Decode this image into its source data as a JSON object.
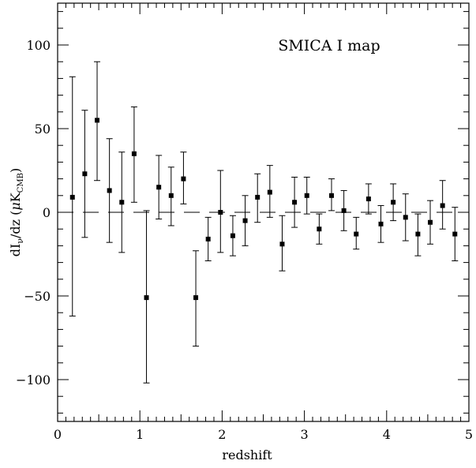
{
  "chart_data": {
    "type": "scatter",
    "annotation": "SMICA I map",
    "xlabel": "redshift",
    "ylabel": {
      "prefix": "dI",
      "nu": "ν",
      "middle": "/dz  (",
      "mu": "μ",
      "k": "K",
      "sub": "CMB",
      "suffix": ")"
    },
    "xlim": [
      0,
      5
    ],
    "ylim": [
      -125,
      125
    ],
    "x_ticks": [
      0,
      1,
      2,
      3,
      4,
      5
    ],
    "y_ticks": [
      -100,
      -50,
      0,
      50,
      100
    ],
    "x_tick_labels": [
      "0",
      "1",
      "2",
      "3",
      "4",
      "5"
    ],
    "y_tick_labels": [
      "−100",
      "−50",
      "0",
      "50",
      "100"
    ],
    "zero_line": {
      "style": "dashed",
      "y": 0
    },
    "marker": "filled-square",
    "points": [
      {
        "x": 0.18,
        "y": 9,
        "lo": -62,
        "hi": 81
      },
      {
        "x": 0.33,
        "y": 23,
        "lo": -15,
        "hi": 61
      },
      {
        "x": 0.48,
        "y": 55,
        "lo": 19,
        "hi": 90
      },
      {
        "x": 0.63,
        "y": 13,
        "lo": -18,
        "hi": 44
      },
      {
        "x": 0.78,
        "y": 6,
        "lo": -24,
        "hi": 36
      },
      {
        "x": 0.93,
        "y": 35,
        "lo": 6,
        "hi": 63
      },
      {
        "x": 1.08,
        "y": -51,
        "lo": -102,
        "hi": 1
      },
      {
        "x": 1.23,
        "y": 15,
        "lo": -4,
        "hi": 34
      },
      {
        "x": 1.38,
        "y": 10,
        "lo": -8,
        "hi": 27
      },
      {
        "x": 1.53,
        "y": 20,
        "lo": 5,
        "hi": 36
      },
      {
        "x": 1.68,
        "y": -51,
        "lo": -80,
        "hi": -23
      },
      {
        "x": 1.83,
        "y": -16,
        "lo": -29,
        "hi": -3
      },
      {
        "x": 1.98,
        "y": 0,
        "lo": -24,
        "hi": 25
      },
      {
        "x": 2.13,
        "y": -14,
        "lo": -26,
        "hi": -2
      },
      {
        "x": 2.28,
        "y": -5,
        "lo": -20,
        "hi": 10
      },
      {
        "x": 2.43,
        "y": 9,
        "lo": -6,
        "hi": 23
      },
      {
        "x": 2.58,
        "y": 12,
        "lo": -3,
        "hi": 28
      },
      {
        "x": 2.73,
        "y": -19,
        "lo": -35,
        "hi": -2
      },
      {
        "x": 2.88,
        "y": 6,
        "lo": -9,
        "hi": 21
      },
      {
        "x": 3.03,
        "y": 10,
        "lo": -1,
        "hi": 21
      },
      {
        "x": 3.18,
        "y": -10,
        "lo": -19,
        "hi": -1
      },
      {
        "x": 3.33,
        "y": 10,
        "lo": 1,
        "hi": 20
      },
      {
        "x": 3.48,
        "y": 1,
        "lo": -11,
        "hi": 13
      },
      {
        "x": 3.63,
        "y": -13,
        "lo": -22,
        "hi": -3
      },
      {
        "x": 3.78,
        "y": 8,
        "lo": -1,
        "hi": 17
      },
      {
        "x": 3.93,
        "y": -7,
        "lo": -18,
        "hi": 4
      },
      {
        "x": 4.08,
        "y": 6,
        "lo": -5,
        "hi": 17
      },
      {
        "x": 4.23,
        "y": -3,
        "lo": -17,
        "hi": 11
      },
      {
        "x": 4.38,
        "y": -13,
        "lo": -26,
        "hi": -1
      },
      {
        "x": 4.53,
        "y": -6,
        "lo": -19,
        "hi": 7
      },
      {
        "x": 4.68,
        "y": 4,
        "lo": -10,
        "hi": 19
      },
      {
        "x": 4.83,
        "y": -13,
        "lo": -29,
        "hi": 3
      }
    ]
  }
}
